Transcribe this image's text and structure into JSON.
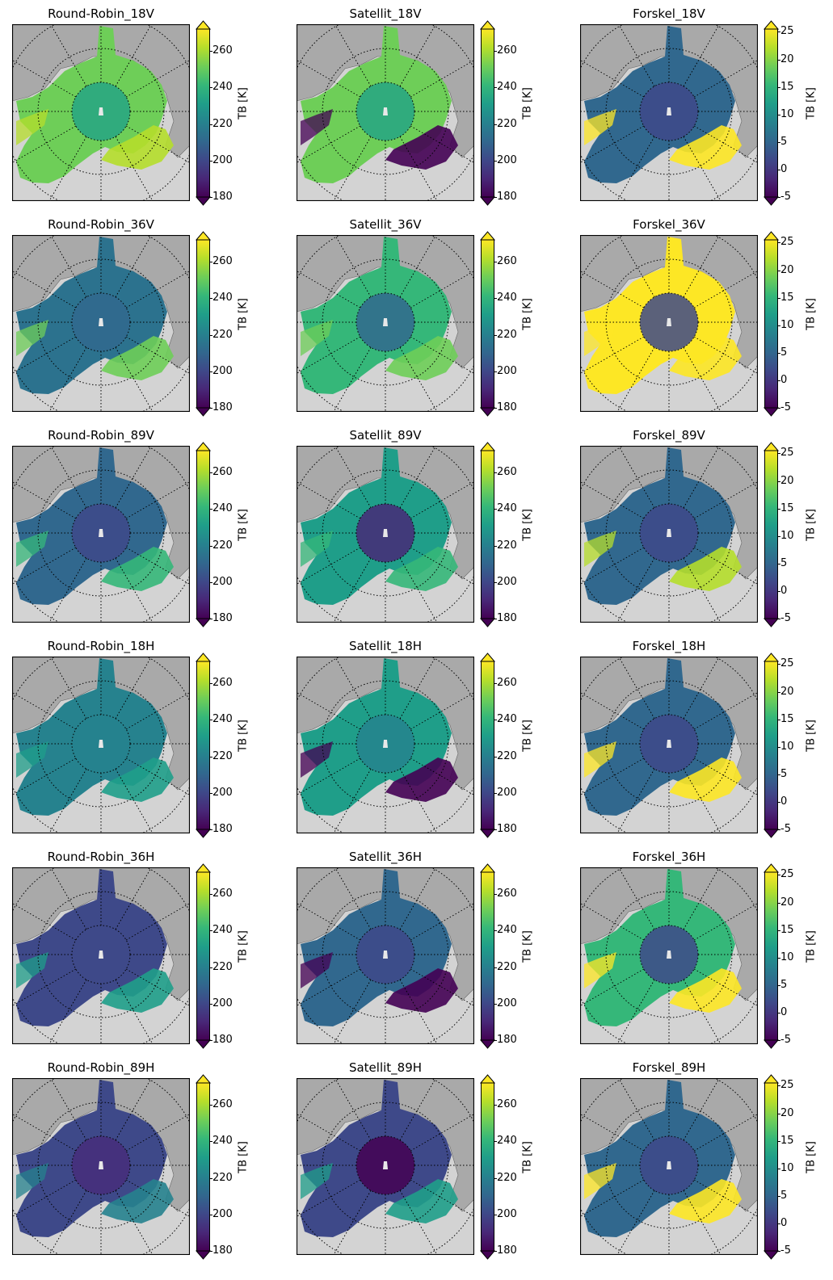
{
  "figure": {
    "colormap": "viridis",
    "colormap_stops": [
      "#440154",
      "#482878",
      "#3e4989",
      "#31688e",
      "#26828e",
      "#1f9e89",
      "#35b779",
      "#6ece58",
      "#b5de2b",
      "#fde725"
    ],
    "colors": {
      "background_land": "#a9a9a9",
      "background_ocean": "#d3d3d3",
      "coastline": "#666666",
      "gridline": "#000000"
    },
    "colorbar_label": "TB [K]"
  },
  "chart_data": [
    {
      "type": "heatmap",
      "title": "Round-Robin_18V",
      "colorbar_ticks": [
        "180",
        "200",
        "220",
        "240",
        "260"
      ],
      "vmin": 180,
      "vmax": 272,
      "ice_color": "#6ece58",
      "pole_color": "#26a584",
      "edge_color": "#b5de2b",
      "colorbar_label": "TB [K]"
    },
    {
      "type": "heatmap",
      "title": "Satellit_18V",
      "colorbar_ticks": [
        "180",
        "200",
        "220",
        "240",
        "260"
      ],
      "vmin": 180,
      "vmax": 272,
      "ice_color": "#6ece58",
      "pole_color": "#26a584",
      "edge_color": "#440154",
      "colorbar_label": "TB [K]"
    },
    {
      "type": "heatmap",
      "title": "Forskel_18V",
      "colorbar_ticks": [
        "-5",
        "0",
        "5",
        "10",
        "15",
        "20",
        "25"
      ],
      "vmin": -5,
      "vmax": 25.5,
      "ice_color": "#31688e",
      "pole_color": "#3e4989",
      "edge_color": "#fde725",
      "colorbar_label": "TB [K]"
    },
    {
      "type": "heatmap",
      "title": "Round-Robin_36V",
      "colorbar_ticks": [
        "180",
        "200",
        "220",
        "240",
        "260"
      ],
      "vmin": 180,
      "vmax": 272,
      "ice_color": "#2c728e",
      "pole_color": "#31688e",
      "edge_color": "#6ece58",
      "colorbar_label": "TB [K]"
    },
    {
      "type": "heatmap",
      "title": "Satellit_36V",
      "colorbar_ticks": [
        "180",
        "200",
        "220",
        "240",
        "260"
      ],
      "vmin": 180,
      "vmax": 272,
      "ice_color": "#35b779",
      "pole_color": "#31688e",
      "edge_color": "#6ece58",
      "colorbar_label": "TB [K]"
    },
    {
      "type": "heatmap",
      "title": "Forskel_36V",
      "colorbar_ticks": [
        "-5",
        "0",
        "5",
        "10",
        "15",
        "20",
        "25"
      ],
      "vmin": -5,
      "vmax": 25.5,
      "ice_color": "#fde725",
      "pole_color": "#3e4989",
      "edge_color": "#fde725",
      "colorbar_label": "TB [K]"
    },
    {
      "type": "heatmap",
      "title": "Round-Robin_89V",
      "colorbar_ticks": [
        "180",
        "200",
        "220",
        "240",
        "260"
      ],
      "vmin": 180,
      "vmax": 272,
      "ice_color": "#31688e",
      "pole_color": "#3e4989",
      "edge_color": "#35b779",
      "colorbar_label": "TB [K]"
    },
    {
      "type": "heatmap",
      "title": "Satellit_89V",
      "colorbar_ticks": [
        "180",
        "200",
        "220",
        "240",
        "260"
      ],
      "vmin": 180,
      "vmax": 272,
      "ice_color": "#1f9e89",
      "pole_color": "#482878",
      "edge_color": "#35b779",
      "colorbar_label": "TB [K]"
    },
    {
      "type": "heatmap",
      "title": "Forskel_89V",
      "colorbar_ticks": [
        "-5",
        "0",
        "5",
        "10",
        "15",
        "20",
        "25"
      ],
      "vmin": -5,
      "vmax": 25.5,
      "ice_color": "#31688e",
      "pole_color": "#3e4989",
      "edge_color": "#b5de2b",
      "colorbar_label": "TB [K]"
    },
    {
      "type": "heatmap",
      "title": "Round-Robin_18H",
      "colorbar_ticks": [
        "180",
        "200",
        "220",
        "240",
        "260"
      ],
      "vmin": 180,
      "vmax": 272,
      "ice_color": "#26828e",
      "pole_color": "#26828e",
      "edge_color": "#1f9e89",
      "colorbar_label": "TB [K]"
    },
    {
      "type": "heatmap",
      "title": "Satellit_18H",
      "colorbar_ticks": [
        "180",
        "200",
        "220",
        "240",
        "260"
      ],
      "vmin": 180,
      "vmax": 272,
      "ice_color": "#1f9e89",
      "pole_color": "#26828e",
      "edge_color": "#440154",
      "colorbar_label": "TB [K]"
    },
    {
      "type": "heatmap",
      "title": "Forskel_18H",
      "colorbar_ticks": [
        "-5",
        "0",
        "5",
        "10",
        "15",
        "20",
        "25"
      ],
      "vmin": -5,
      "vmax": 25.5,
      "ice_color": "#31688e",
      "pole_color": "#3e4989",
      "edge_color": "#fde725",
      "colorbar_label": "TB [K]"
    },
    {
      "type": "heatmap",
      "title": "Round-Robin_36H",
      "colorbar_ticks": [
        "180",
        "200",
        "220",
        "240",
        "260"
      ],
      "vmin": 180,
      "vmax": 272,
      "ice_color": "#3e4989",
      "pole_color": "#3e4989",
      "edge_color": "#1f9e89",
      "colorbar_label": "TB [K]"
    },
    {
      "type": "heatmap",
      "title": "Satellit_36H",
      "colorbar_ticks": [
        "180",
        "200",
        "220",
        "240",
        "260"
      ],
      "vmin": 180,
      "vmax": 272,
      "ice_color": "#31688e",
      "pole_color": "#3e4989",
      "edge_color": "#440154",
      "colorbar_label": "TB [K]"
    },
    {
      "type": "heatmap",
      "title": "Forskel_36H",
      "colorbar_ticks": [
        "-5",
        "0",
        "5",
        "10",
        "15",
        "20",
        "25"
      ],
      "vmin": -5,
      "vmax": 25.5,
      "ice_color": "#35b779",
      "pole_color": "#3e4989",
      "edge_color": "#fde725",
      "colorbar_label": "TB [K]"
    },
    {
      "type": "heatmap",
      "title": "Round-Robin_89H",
      "colorbar_ticks": [
        "180",
        "200",
        "220",
        "240",
        "260"
      ],
      "vmin": 180,
      "vmax": 272,
      "ice_color": "#3e4989",
      "pole_color": "#472d7b",
      "edge_color": "#26828e",
      "colorbar_label": "TB [K]"
    },
    {
      "type": "heatmap",
      "title": "Satellit_89H",
      "colorbar_ticks": [
        "180",
        "200",
        "220",
        "240",
        "260"
      ],
      "vmin": 180,
      "vmax": 272,
      "ice_color": "#3e4989",
      "pole_color": "#440154",
      "edge_color": "#1f9e89",
      "colorbar_label": "TB [K]"
    },
    {
      "type": "heatmap",
      "title": "Forskel_89H",
      "colorbar_ticks": [
        "-5",
        "0",
        "5",
        "10",
        "15",
        "20",
        "25"
      ],
      "vmin": -5,
      "vmax": 25.5,
      "ice_color": "#31688e",
      "pole_color": "#3e4989",
      "edge_color": "#fde725",
      "colorbar_label": "TB [K]"
    }
  ]
}
